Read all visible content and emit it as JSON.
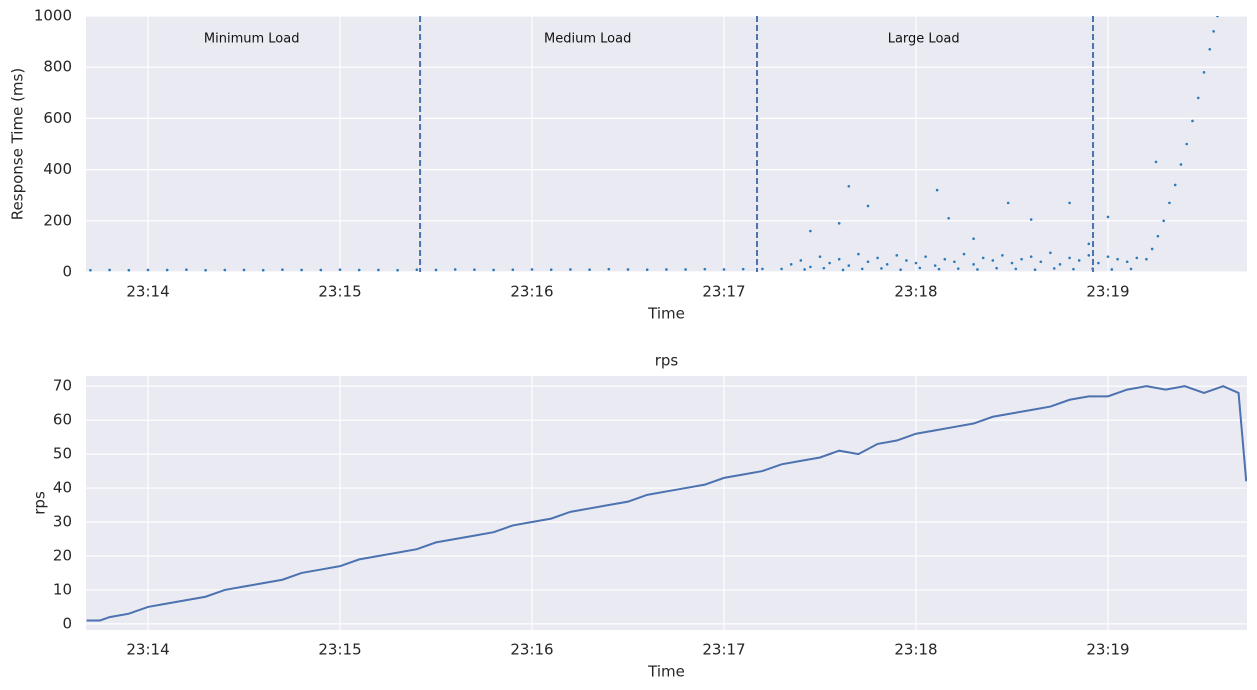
{
  "chart_data": [
    {
      "type": "scatter",
      "xlabel": "Time",
      "ylabel": "Response Time (ms)",
      "x": [
        13.7,
        13.8,
        13.9,
        14.0,
        14.1,
        14.2,
        14.3,
        14.4,
        14.5,
        14.6,
        14.7,
        14.8,
        14.9,
        15.0,
        15.1,
        15.2,
        15.3,
        15.4,
        15.5,
        15.6,
        15.7,
        15.8,
        15.9,
        16.0,
        16.1,
        16.2,
        16.3,
        16.4,
        16.5,
        16.6,
        16.7,
        16.8,
        16.9,
        17.0,
        17.1,
        17.2,
        17.3,
        17.35,
        17.4,
        17.45,
        17.5,
        17.55,
        17.6,
        17.65,
        17.7,
        17.75,
        17.8,
        17.85,
        17.9,
        17.95,
        18.0,
        18.05,
        18.1,
        18.15,
        18.2,
        18.25,
        18.3,
        18.35,
        18.4,
        18.45,
        18.5,
        18.55,
        18.6,
        18.65,
        18.7,
        18.75,
        18.8,
        18.85,
        18.9,
        18.95,
        19.0,
        19.05,
        19.1,
        19.15,
        17.42,
        17.52,
        17.62,
        17.72,
        17.82,
        17.92,
        18.02,
        18.12,
        18.22,
        18.32,
        18.42,
        18.52,
        18.62,
        18.72,
        18.82,
        18.92,
        19.02,
        19.12,
        17.65,
        17.75,
        17.6,
        18.11,
        18.17,
        18.48,
        18.6,
        18.8,
        19.0,
        19.25,
        17.45,
        18.3,
        18.9,
        19.2,
        19.23,
        19.26,
        19.29,
        19.32,
        19.35,
        19.38,
        19.41,
        19.44,
        19.47,
        19.5,
        19.53,
        19.55,
        19.57
      ],
      "values": [
        7,
        8,
        7,
        8,
        8,
        9,
        7,
        8,
        8,
        7,
        9,
        8,
        8,
        9,
        8,
        8,
        7,
        9,
        8,
        10,
        9,
        8,
        9,
        10,
        9,
        10,
        9,
        11,
        10,
        9,
        10,
        10,
        11,
        10,
        11,
        12,
        12,
        30,
        45,
        20,
        60,
        35,
        50,
        25,
        70,
        40,
        55,
        30,
        65,
        45,
        35,
        60,
        25,
        50,
        40,
        70,
        30,
        55,
        45,
        65,
        35,
        50,
        60,
        40,
        75,
        30,
        55,
        45,
        65,
        35,
        60,
        50,
        40,
        55,
        10,
        15,
        8,
        12,
        14,
        9,
        16,
        11,
        13,
        10,
        15,
        12,
        9,
        14,
        11,
        13,
        10,
        12,
        335,
        258,
        190,
        320,
        210,
        270,
        205,
        270,
        215,
        430,
        160,
        130,
        110,
        50,
        90,
        140,
        200,
        270,
        340,
        420,
        500,
        590,
        680,
        780,
        870,
        940,
        1000
      ],
      "color": "#2b7bba",
      "xlim": [
        13.677,
        19.724
      ],
      "xticks": [
        {
          "value": 14,
          "label": "23:14"
        },
        {
          "value": 15,
          "label": "23:15"
        },
        {
          "value": 16,
          "label": "23:16"
        },
        {
          "value": 17,
          "label": "23:17"
        },
        {
          "value": 18,
          "label": "23:18"
        },
        {
          "value": 19,
          "label": "23:19"
        }
      ],
      "ylim": [
        0,
        1000
      ],
      "yticks": [
        0,
        200,
        400,
        600,
        800,
        1000
      ],
      "grid": true,
      "vlines": [
        15.417,
        17.172,
        18.922
      ],
      "vline_color": "#4c72b0",
      "annotations": [
        {
          "text": "Minimum Load",
          "x": 14.54,
          "y": 910
        },
        {
          "text": "Medium Load",
          "x": 16.29,
          "y": 910
        },
        {
          "text": "Large Load",
          "x": 18.04,
          "y": 910
        }
      ]
    },
    {
      "type": "line",
      "title": "rps",
      "xlabel": "Time",
      "ylabel": "rps",
      "x": [
        13.68,
        13.75,
        13.8,
        13.9,
        14.0,
        14.1,
        14.2,
        14.3,
        14.4,
        14.5,
        14.6,
        14.7,
        14.8,
        14.9,
        15.0,
        15.1,
        15.2,
        15.3,
        15.4,
        15.5,
        15.6,
        15.7,
        15.8,
        15.9,
        16.0,
        16.1,
        16.2,
        16.3,
        16.4,
        16.5,
        16.6,
        16.7,
        16.8,
        16.9,
        17.0,
        17.1,
        17.2,
        17.3,
        17.4,
        17.5,
        17.6,
        17.7,
        17.8,
        17.9,
        18.0,
        18.1,
        18.2,
        18.3,
        18.4,
        18.5,
        18.6,
        18.7,
        18.8,
        18.9,
        19.0,
        19.1,
        19.2,
        19.3,
        19.4,
        19.5,
        19.6,
        19.68,
        19.72
      ],
      "values": [
        1,
        1,
        2,
        3,
        5,
        6,
        7,
        8,
        10,
        11,
        12,
        13,
        15,
        16,
        17,
        19,
        20,
        21,
        22,
        24,
        25,
        26,
        27,
        29,
        30,
        31,
        33,
        34,
        35,
        36,
        38,
        39,
        40,
        41,
        43,
        44,
        45,
        47,
        48,
        49,
        51,
        50,
        53,
        54,
        56,
        57,
        58,
        59,
        61,
        62,
        63,
        64,
        66,
        67,
        67,
        69,
        70,
        69,
        70,
        68,
        70,
        68,
        42
      ],
      "color": "#4c72b0",
      "xlim": [
        13.677,
        19.724
      ],
      "xticks": [
        {
          "value": 14,
          "label": "23:14"
        },
        {
          "value": 15,
          "label": "23:15"
        },
        {
          "value": 16,
          "label": "23:16"
        },
        {
          "value": 17,
          "label": "23:17"
        },
        {
          "value": 18,
          "label": "23:18"
        },
        {
          "value": 19,
          "label": "23:19"
        }
      ],
      "ylim": [
        -1.8,
        73
      ],
      "yticks": [
        0,
        10,
        20,
        30,
        40,
        50,
        60,
        70
      ],
      "grid": true
    }
  ]
}
